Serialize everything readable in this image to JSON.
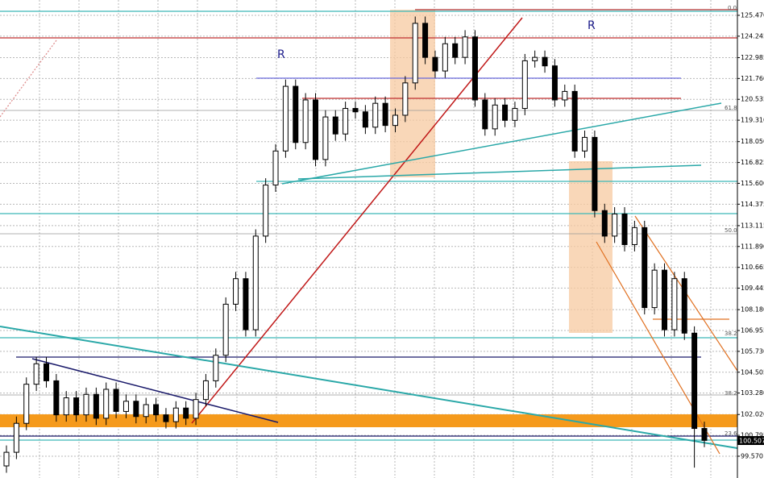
{
  "chart_data": {
    "type": "candlestick",
    "open": [
      99.0,
      99.8,
      101.5,
      103.8,
      105.0,
      104.0,
      102.0,
      103.0,
      102.0,
      103.2,
      101.8,
      103.5,
      102.2,
      102.8,
      101.9,
      102.6,
      102.0,
      101.6,
      102.4,
      101.8,
      102.9,
      104.0,
      105.5,
      108.5,
      110.0,
      107.0,
      112.5,
      115.5,
      117.5,
      121.3,
      118.0,
      120.5,
      117.0,
      119.5,
      118.5,
      120.0,
      119.8,
      118.9,
      120.3,
      119.0,
      119.6,
      121.5,
      125.0,
      123.0,
      122.2,
      123.8,
      123.0,
      124.2,
      120.5,
      118.8,
      120.2,
      119.3,
      120.0,
      122.8,
      123.0,
      122.5,
      120.5,
      121.0,
      117.5,
      118.3,
      114.0,
      112.5,
      113.8,
      112.0,
      113.0,
      108.3,
      110.5,
      107.0,
      110.0,
      106.8,
      101.2
    ],
    "high": [
      100.2,
      101.9,
      104.2,
      105.4,
      105.4,
      104.4,
      103.4,
      103.4,
      103.6,
      103.6,
      103.9,
      103.9,
      103.2,
      103.2,
      103.0,
      103.0,
      102.4,
      102.8,
      102.8,
      103.3,
      104.4,
      105.9,
      108.9,
      110.4,
      110.4,
      112.9,
      115.9,
      117.9,
      121.7,
      121.7,
      120.9,
      120.9,
      119.9,
      119.9,
      120.4,
      120.4,
      120.2,
      120.7,
      120.7,
      120.0,
      121.9,
      125.4,
      125.4,
      123.4,
      124.2,
      124.2,
      124.6,
      124.6,
      120.9,
      120.6,
      120.6,
      120.4,
      123.2,
      123.4,
      123.4,
      122.9,
      121.4,
      121.4,
      118.7,
      118.7,
      114.4,
      114.2,
      114.2,
      113.4,
      113.4,
      110.9,
      110.9,
      110.4,
      110.4,
      107.2,
      101.6
    ],
    "low": [
      98.6,
      99.4,
      101.1,
      103.4,
      103.6,
      101.6,
      101.6,
      101.6,
      101.6,
      101.4,
      101.4,
      101.8,
      101.8,
      101.5,
      101.5,
      101.6,
      101.2,
      101.2,
      101.4,
      101.4,
      102.5,
      103.6,
      105.1,
      108.1,
      106.6,
      106.6,
      112.1,
      115.1,
      117.1,
      117.6,
      117.6,
      116.6,
      116.6,
      118.1,
      118.1,
      119.4,
      118.5,
      118.5,
      118.6,
      118.6,
      119.2,
      121.1,
      122.6,
      121.8,
      121.8,
      122.6,
      122.6,
      120.1,
      118.4,
      118.4,
      118.9,
      118.9,
      119.6,
      122.4,
      122.1,
      120.1,
      120.1,
      117.1,
      117.1,
      113.6,
      112.1,
      112.1,
      111.6,
      111.6,
      107.9,
      107.9,
      106.6,
      106.6,
      106.4,
      98.9,
      100.1
    ],
    "close": [
      99.8,
      101.5,
      103.8,
      105.0,
      104.0,
      102.0,
      103.0,
      102.0,
      103.2,
      101.8,
      103.5,
      102.2,
      102.8,
      101.9,
      102.6,
      102.0,
      101.6,
      102.4,
      101.8,
      102.9,
      104.0,
      105.5,
      108.5,
      110.0,
      107.0,
      112.5,
      115.5,
      117.5,
      121.3,
      118.0,
      120.5,
      117.0,
      119.5,
      118.5,
      120.0,
      119.8,
      118.9,
      120.3,
      119.0,
      119.6,
      121.5,
      125.0,
      123.0,
      122.2,
      123.8,
      123.0,
      124.2,
      120.5,
      118.8,
      120.2,
      119.3,
      120.0,
      122.8,
      123.0,
      122.5,
      120.5,
      121.0,
      117.5,
      118.3,
      114.0,
      112.5,
      113.8,
      112.0,
      113.0,
      108.3,
      110.5,
      107.0,
      110.0,
      106.8,
      101.2,
      100.5
    ],
    "up_color": "#ffffff",
    "down_color": "#000000",
    "ylim": [
      98.29,
      126.37
    ],
    "yticks": [
      {
        "value": 125.47,
        "label": "125.470"
      },
      {
        "value": 124.245,
        "label": "124.245"
      },
      {
        "value": 122.985,
        "label": "122.985"
      },
      {
        "value": 121.76,
        "label": "121.760"
      },
      {
        "value": 120.535,
        "label": "120.535"
      },
      {
        "value": 119.31,
        "label": "119.310"
      },
      {
        "value": 118.05,
        "label": "118.050"
      },
      {
        "value": 116.825,
        "label": "116.825"
      },
      {
        "value": 115.6,
        "label": "115.600"
      },
      {
        "value": 114.375,
        "label": "114.375"
      },
      {
        "value": 113.115,
        "label": "113.115"
      },
      {
        "value": 111.89,
        "label": "111.890"
      },
      {
        "value": 110.665,
        "label": "110.665"
      },
      {
        "value": 109.445,
        "label": "109.445"
      },
      {
        "value": 108.18,
        "label": "108.180"
      },
      {
        "value": 106.955,
        "label": "106.955"
      },
      {
        "value": 105.73,
        "label": "105.730"
      },
      {
        "value": 104.505,
        "label": "104.505"
      },
      {
        "value": 103.28,
        "label": "103.280"
      },
      {
        "value": 102.02,
        "label": "102.020"
      },
      {
        "value": 100.795,
        "label": "100.795"
      },
      {
        "value": 99.57,
        "label": "99.570"
      }
    ],
    "grid": true,
    "current_price": "100.507",
    "annotations": [
      "R",
      "R",
      "61.8",
      "50.0",
      "38.2",
      "38.2",
      "23.6",
      "0.0"
    ]
  }
}
